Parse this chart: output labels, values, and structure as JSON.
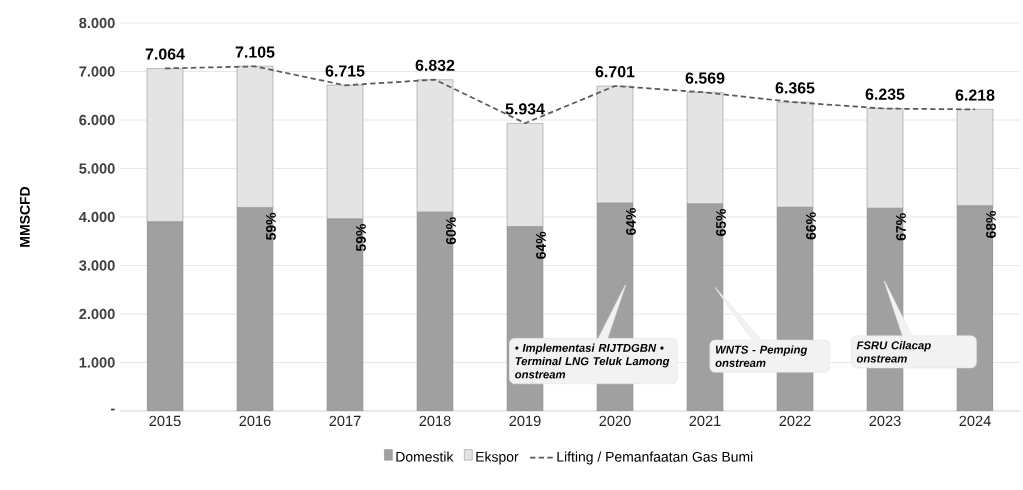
{
  "chart_data": {
    "type": "bar",
    "stacked": true,
    "ylabel": "MMSCFD",
    "categories": [
      "2015",
      "2016",
      "2017",
      "2018",
      "2019",
      "2020",
      "2021",
      "2022",
      "2023",
      "2024"
    ],
    "series": [
      {
        "name": "Domestik",
        "type": "bar",
        "color": "#a0a0a0",
        "values": [
          3900,
          4190,
          3960,
          4100,
          3800,
          4290,
          4270,
          4200,
          4180,
          4230
        ]
      },
      {
        "name": "Ekspor",
        "type": "bar",
        "color": "#e4e4e4",
        "values": [
          3160,
          2920,
          2760,
          2730,
          2130,
          2410,
          2300,
          2170,
          2060,
          1990
        ]
      },
      {
        "name": "Lifting / Pemanfaatan Gas Bumi",
        "type": "line",
        "color": "#595959",
        "line_style": "dashed",
        "values": [
          7064,
          7105,
          6715,
          6832,
          5934,
          6701,
          6569,
          6365,
          6235,
          6218
        ],
        "value_labels": [
          "7.064",
          "7.105",
          "6.715",
          "6.832",
          "5.934",
          "6.701",
          "6.569",
          "6.365",
          "6.235",
          "6.218"
        ]
      }
    ],
    "ylim": [
      0,
      8000
    ],
    "yticks": [
      {
        "value": 0,
        "label": "-"
      },
      {
        "value": 1000,
        "label": "1.000"
      },
      {
        "value": 2000,
        "label": "2.000"
      },
      {
        "value": 3000,
        "label": "3.000"
      },
      {
        "value": 4000,
        "label": "4.000"
      },
      {
        "value": 5000,
        "label": "5.000"
      },
      {
        "value": 6000,
        "label": "6.000"
      },
      {
        "value": 7000,
        "label": "7.000"
      },
      {
        "value": 8000,
        "label": "8.000"
      }
    ],
    "grid": "y",
    "legend": "bottom",
    "annotations": [
      "• Implementasi RIJTDGBN • Terminal LNG Teluk Lamong onstream",
      "WNTS - Pemping onstream",
      "FSRU Cilacap onstream",
      {
        "text": "59%",
        "x": "2016",
        "y": 4190
      },
      {
        "text": "59%",
        "x": "2017",
        "y": 3960
      },
      {
        "text": "60%",
        "x": "2018",
        "y": 4100
      },
      {
        "text": "64%",
        "x": "2019",
        "y": 3800
      },
      {
        "text": "64%",
        "x": "2020",
        "y": 4290
      },
      {
        "text": "65%",
        "x": "2021",
        "y": 4270
      },
      {
        "text": "66%",
        "x": "2022",
        "y": 4200
      },
      {
        "text": "67%",
        "x": "2023",
        "y": 4180
      },
      {
        "text": "68%",
        "x": "2024",
        "y": 4230
      }
    ]
  }
}
